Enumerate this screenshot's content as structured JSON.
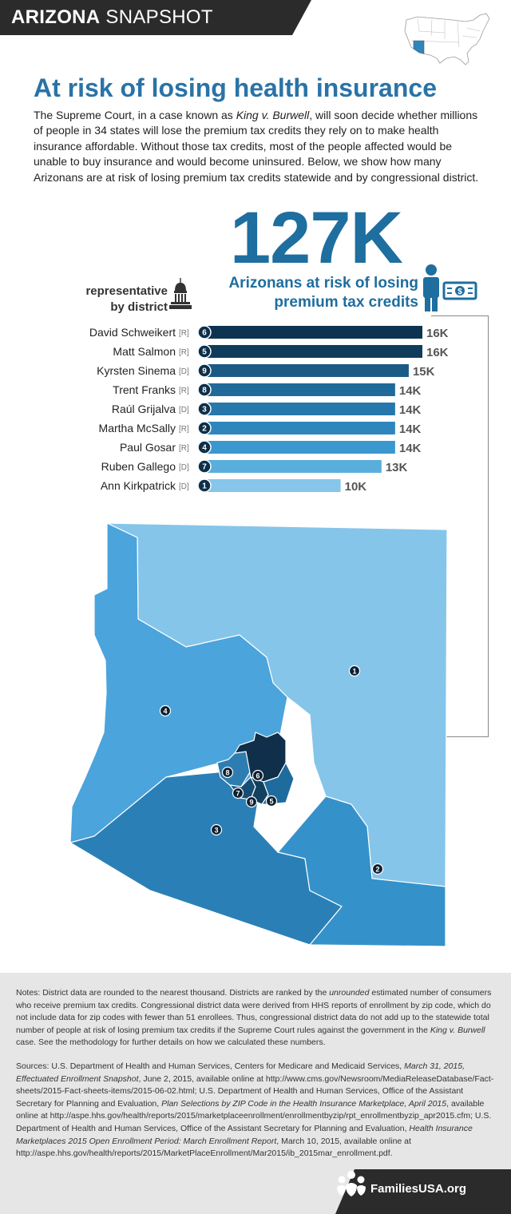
{
  "banner": {
    "bold": "ARIZONA",
    "rest": " SNAPSHOT"
  },
  "title": "At risk of losing health insurance",
  "intro": {
    "p1": "The Supreme Court, in a case known as ",
    "case_name": "King v. Burwell",
    "p2": ", will soon decide whether millions of people in 34 states will lose the premium tax credits they rely on to make health insurance affordable. Without those tax credits, most of the people affected would be unable to buy insurance and would become uninsured. Below, we show how many Arizonans are at risk of losing premium tax credits statewide and by congressional district."
  },
  "headline": {
    "value": "127K",
    "line1": "Arizonans at risk of losing",
    "line2": "premium tax credits"
  },
  "rep_label": {
    "line1": "representative",
    "line2": "by district"
  },
  "chart_data": {
    "type": "bar",
    "orientation": "horizontal",
    "categories": [
      "David Schweikert",
      "Matt Salmon",
      "Kyrsten Sinema",
      "Trent Franks",
      "Raúl Grijalva",
      "Martha McSally",
      "Paul Gosar",
      "Ruben Gallego",
      "Ann Kirkpatrick"
    ],
    "parties": [
      "[R]",
      "[R]",
      "[D]",
      "[R]",
      "[D]",
      "[R]",
      "[R]",
      "[D]",
      "[D]"
    ],
    "districts": [
      "6",
      "5",
      "9",
      "8",
      "3",
      "2",
      "4",
      "7",
      "1"
    ],
    "values": [
      16,
      16,
      15,
      14,
      14,
      14,
      14,
      13,
      10
    ],
    "value_labels": [
      "16K",
      "16K",
      "15K",
      "14K",
      "14K",
      "14K",
      "14K",
      "13K",
      "10K"
    ],
    "colors": [
      "#0d3350",
      "#103c5c",
      "#1b5a84",
      "#206a99",
      "#2677ab",
      "#2e86bd",
      "#3a98ce",
      "#5aaedc",
      "#86c6ea"
    ],
    "xlim": [
      0,
      16
    ]
  },
  "map": {
    "labels": [
      "1",
      "2",
      "3",
      "4",
      "5",
      "6",
      "7",
      "8",
      "9"
    ],
    "colors": {
      "d1": "#85c5ea",
      "d2": "#3591ca",
      "d3": "#2a80b6",
      "d4": "#4ba4dc",
      "d5": "#1e6b9e",
      "d6": "#0f2f4a",
      "d7": "#164c76",
      "d8": "#2d7db1",
      "d9": "#12405f"
    }
  },
  "notes": {
    "p1_a": "Notes: District data are rounded to the nearest thousand. Districts are ranked by the ",
    "p1_unrounded": "unrounded",
    "p1_b": " estimated number of consumers who receive premium tax credits. Congressional district data were derived from HHS reports of enrollment by zip code, which do not include data for zip codes with fewer than 51 enrollees. Thus, congressional district data do not add up to the statewide total number of people at risk of losing premium tax credits if the Supreme Court rules against the government in the ",
    "p1_case": "King v. Burwell",
    "p1_c": " case. See the methodology for further details on how we calculated these numbers.",
    "p2_a": "Sources: U.S. Department of Health and Human Services, Centers for Medicare and Medicaid Services, ",
    "p2_i1": "March 31, 2015, Effectuated Enrollment Snapshot",
    "p2_b": ", June 2, 2015, available online at http://www.cms.gov/Newsroom/MediaReleaseDatabase/Fact-sheets/2015-Fact-sheets-items/2015-06-02.html; U.S. Department of Health and Human Services, Office of the Assistant Secretary for Planning and Evaluation, ",
    "p2_i2": "Plan Selections by ZIP Code in the Health Insurance Marketplace, April 2015",
    "p2_c": ", available online at http://aspe.hhs.gov/health/reports/2015/marketplaceenrollment/enrollmentbyzip/rpt_enrollmentbyzip_apr2015.cfm; U.S. Department of Health and Human Services, Office of the Assistant Secretary for Planning and Evaluation, ",
    "p2_i3": "Health Insurance Marketplaces 2015 Open Enrollment Period: March Enrollment Report",
    "p2_d": ", March 10, 2015, available online at http://aspe.hhs.gov/health/reports/2015/MarketPlaceEnrollment/Mar2015/ib_2015mar_enrollment.pdf."
  },
  "footer": {
    "text": "FamiliesUSA.org",
    "logo_icon": "families-usa-logo"
  }
}
